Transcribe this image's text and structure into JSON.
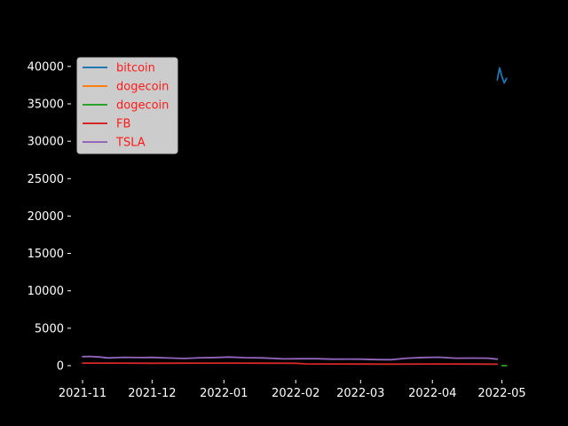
{
  "chart_data": {
    "type": "line",
    "background": "#000000",
    "legend_placement": "upper-left",
    "legend_text_color": "#ff0000",
    "legend_background": "#cccccc",
    "ylim": [
      -1900,
      42000
    ],
    "xlim": [
      "2021-10-27",
      "2022-05-05"
    ],
    "yticks": [
      0,
      5000,
      10000,
      15000,
      20000,
      25000,
      30000,
      35000,
      40000
    ],
    "ytick_labels": [
      "0",
      "5000",
      "10000",
      "15000",
      "20000",
      "25000",
      "30000",
      "35000",
      "40000"
    ],
    "xticks": [
      "2021-11-01",
      "2021-12-01",
      "2022-01-01",
      "2022-02-01",
      "2022-03-01",
      "2022-04-01",
      "2022-05-01"
    ],
    "xtick_labels": [
      "2021-11",
      "2021-12",
      "2022-01",
      "2022-02",
      "2022-03",
      "2022-04",
      "2022-05"
    ],
    "series": [
      {
        "name": "bitcoin",
        "color": "#1f77b4",
        "x": [
          "2022-04-29",
          "2022-04-30",
          "2022-05-01",
          "2022-05-02",
          "2022-05-03"
        ],
        "y": [
          38200,
          39800,
          38600,
          37800,
          38400
        ]
      },
      {
        "name": "dogecoin",
        "color": "#ff7f0e",
        "x": [],
        "y": []
      },
      {
        "name": "dogecoin",
        "color": "#2ca02c",
        "x": [
          "2022-05-01",
          "2022-05-03"
        ],
        "y": [
          0.13,
          0.13
        ]
      },
      {
        "name": "FB",
        "color": "#d62728",
        "x": [
          "2021-11-01",
          "2021-11-15",
          "2021-12-01",
          "2021-12-15",
          "2022-01-01",
          "2022-01-15",
          "2022-02-01",
          "2022-02-05",
          "2022-02-15",
          "2022-03-01",
          "2022-03-15",
          "2022-04-01",
          "2022-04-15",
          "2022-04-29"
        ],
        "y": [
          330,
          340,
          320,
          335,
          340,
          330,
          320,
          240,
          220,
          210,
          200,
          220,
          210,
          200
        ]
      },
      {
        "name": "TSLA",
        "color": "#9467bd",
        "x": [
          "2021-11-01",
          "2021-11-04",
          "2021-11-08",
          "2021-11-12",
          "2021-11-19",
          "2021-11-26",
          "2021-12-01",
          "2021-12-08",
          "2021-12-15",
          "2021-12-22",
          "2021-12-29",
          "2022-01-03",
          "2022-01-10",
          "2022-01-18",
          "2022-01-27",
          "2022-02-03",
          "2022-02-10",
          "2022-02-17",
          "2022-02-24",
          "2022-03-01",
          "2022-03-08",
          "2022-03-14",
          "2022-03-21",
          "2022-03-28",
          "2022-04-04",
          "2022-04-11",
          "2022-04-18",
          "2022-04-25",
          "2022-04-29"
        ],
        "y": [
          1210,
          1230,
          1160,
          1030,
          1110,
          1080,
          1100,
          1020,
          960,
          1050,
          1090,
          1150,
          1070,
          1030,
          900,
          920,
          920,
          860,
          880,
          870,
          810,
          790,
          1000,
          1090,
          1120,
          1000,
          1010,
          1000,
          870
        ]
      }
    ]
  }
}
